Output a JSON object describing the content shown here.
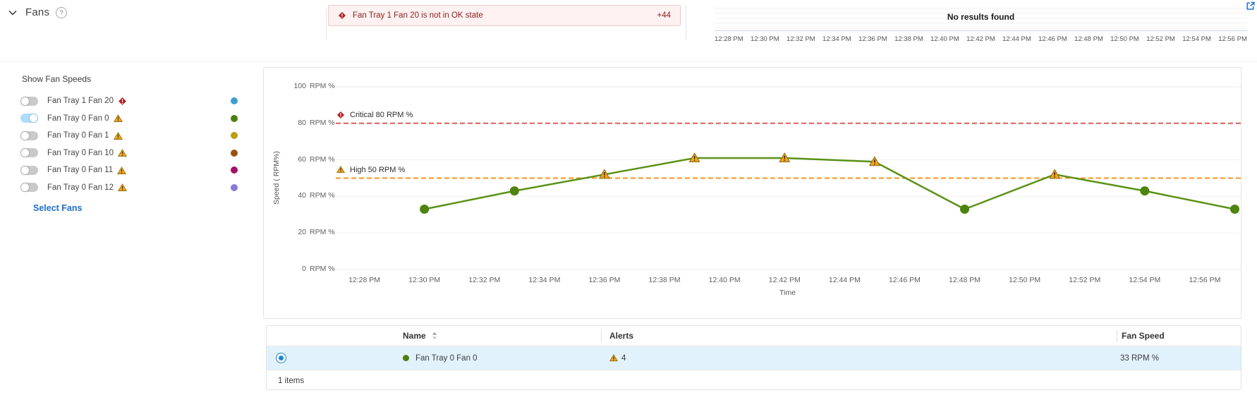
{
  "header": {
    "title": "Fans",
    "help_label": "?",
    "alert_banner": {
      "message": "Fan Tray 1 Fan 20 is not in OK state",
      "overflow_count": "+44",
      "severity": "critical"
    },
    "mini_chart": {
      "empty_text": "No results found",
      "time_labels": [
        "12:28 PM",
        "12:30 PM",
        "12:32 PM",
        "12:34 PM",
        "12:36 PM",
        "12:38 PM",
        "12:40 PM",
        "12:42 PM",
        "12:44 PM",
        "12:46 PM",
        "12:48 PM",
        "12:50 PM",
        "12:52 PM",
        "12:54 PM",
        "12:56 PM"
      ]
    }
  },
  "fan_panel": {
    "title": "Show Fan Speeds",
    "select_link": "Select Fans",
    "fans": [
      {
        "label": "Fan Tray 1 Fan 20",
        "status": "critical",
        "enabled": false,
        "color": "#3b9fd1"
      },
      {
        "label": "Fan Tray 0 Fan 0",
        "status": "warning",
        "enabled": true,
        "color": "#4c800c"
      },
      {
        "label": "Fan Tray 0 Fan 1",
        "status": "warning",
        "enabled": false,
        "color": "#b89f10"
      },
      {
        "label": "Fan Tray 0 Fan 10",
        "status": "warning",
        "enabled": false,
        "color": "#99520e"
      },
      {
        "label": "Fan Tray 0 Fan 11",
        "status": "warning",
        "enabled": false,
        "color": "#a60f68"
      },
      {
        "label": "Fan Tray 0 Fan 12",
        "status": "warning",
        "enabled": false,
        "color": "#8a7ad8"
      }
    ]
  },
  "chart_data": {
    "type": "line",
    "xlabel": "Time",
    "ylabel": "Speed ( RPM%)",
    "y_unit": "RPM %",
    "ylim": [
      0,
      100
    ],
    "y_tick_values": [
      100,
      80,
      60,
      40,
      20,
      0
    ],
    "x_domain_minutes": [
      27,
      57.2
    ],
    "x_tick_minutes": [
      28,
      30,
      32,
      34,
      36,
      38,
      40,
      42,
      44,
      46,
      48,
      50,
      52,
      54,
      56
    ],
    "x_tick_labels": [
      "12:28 PM",
      "12:30 PM",
      "12:32 PM",
      "12:34 PM",
      "12:36 PM",
      "12:38 PM",
      "12:40 PM",
      "12:42 PM",
      "12:44 PM",
      "12:46 PM",
      "12:48 PM",
      "12:50 PM",
      "12:52 PM",
      "12:54 PM",
      "12:56 PM"
    ],
    "grid": true,
    "series": [
      {
        "name": "Fan Tray 0 Fan 0",
        "color": "#5a9216",
        "marker_color": "#4e830d",
        "x_minutes": [
          30,
          33,
          36,
          39,
          42,
          45,
          48,
          51,
          54,
          57
        ],
        "values": [
          33,
          43,
          52,
          61,
          61,
          59,
          33,
          52,
          43,
          33
        ]
      }
    ],
    "warning_marker_threshold": 50,
    "thresholds": [
      {
        "label": "Critical 80 RPM %",
        "value": 80,
        "color": "#e15d5d",
        "icon": "critical"
      },
      {
        "label": "High 50 RPM %",
        "value": 50,
        "color": "#f7941e",
        "icon": "warning"
      }
    ]
  },
  "table": {
    "columns": {
      "name": "Name",
      "alerts": "Alerts",
      "fan_speed": "Fan Speed"
    },
    "rows": [
      {
        "selected": true,
        "dot_color": "#4c800c",
        "name": "Fan Tray 0 Fan 0",
        "alerts": "4",
        "fan_speed": "33 RPM %"
      }
    ],
    "footer": "1 items"
  }
}
